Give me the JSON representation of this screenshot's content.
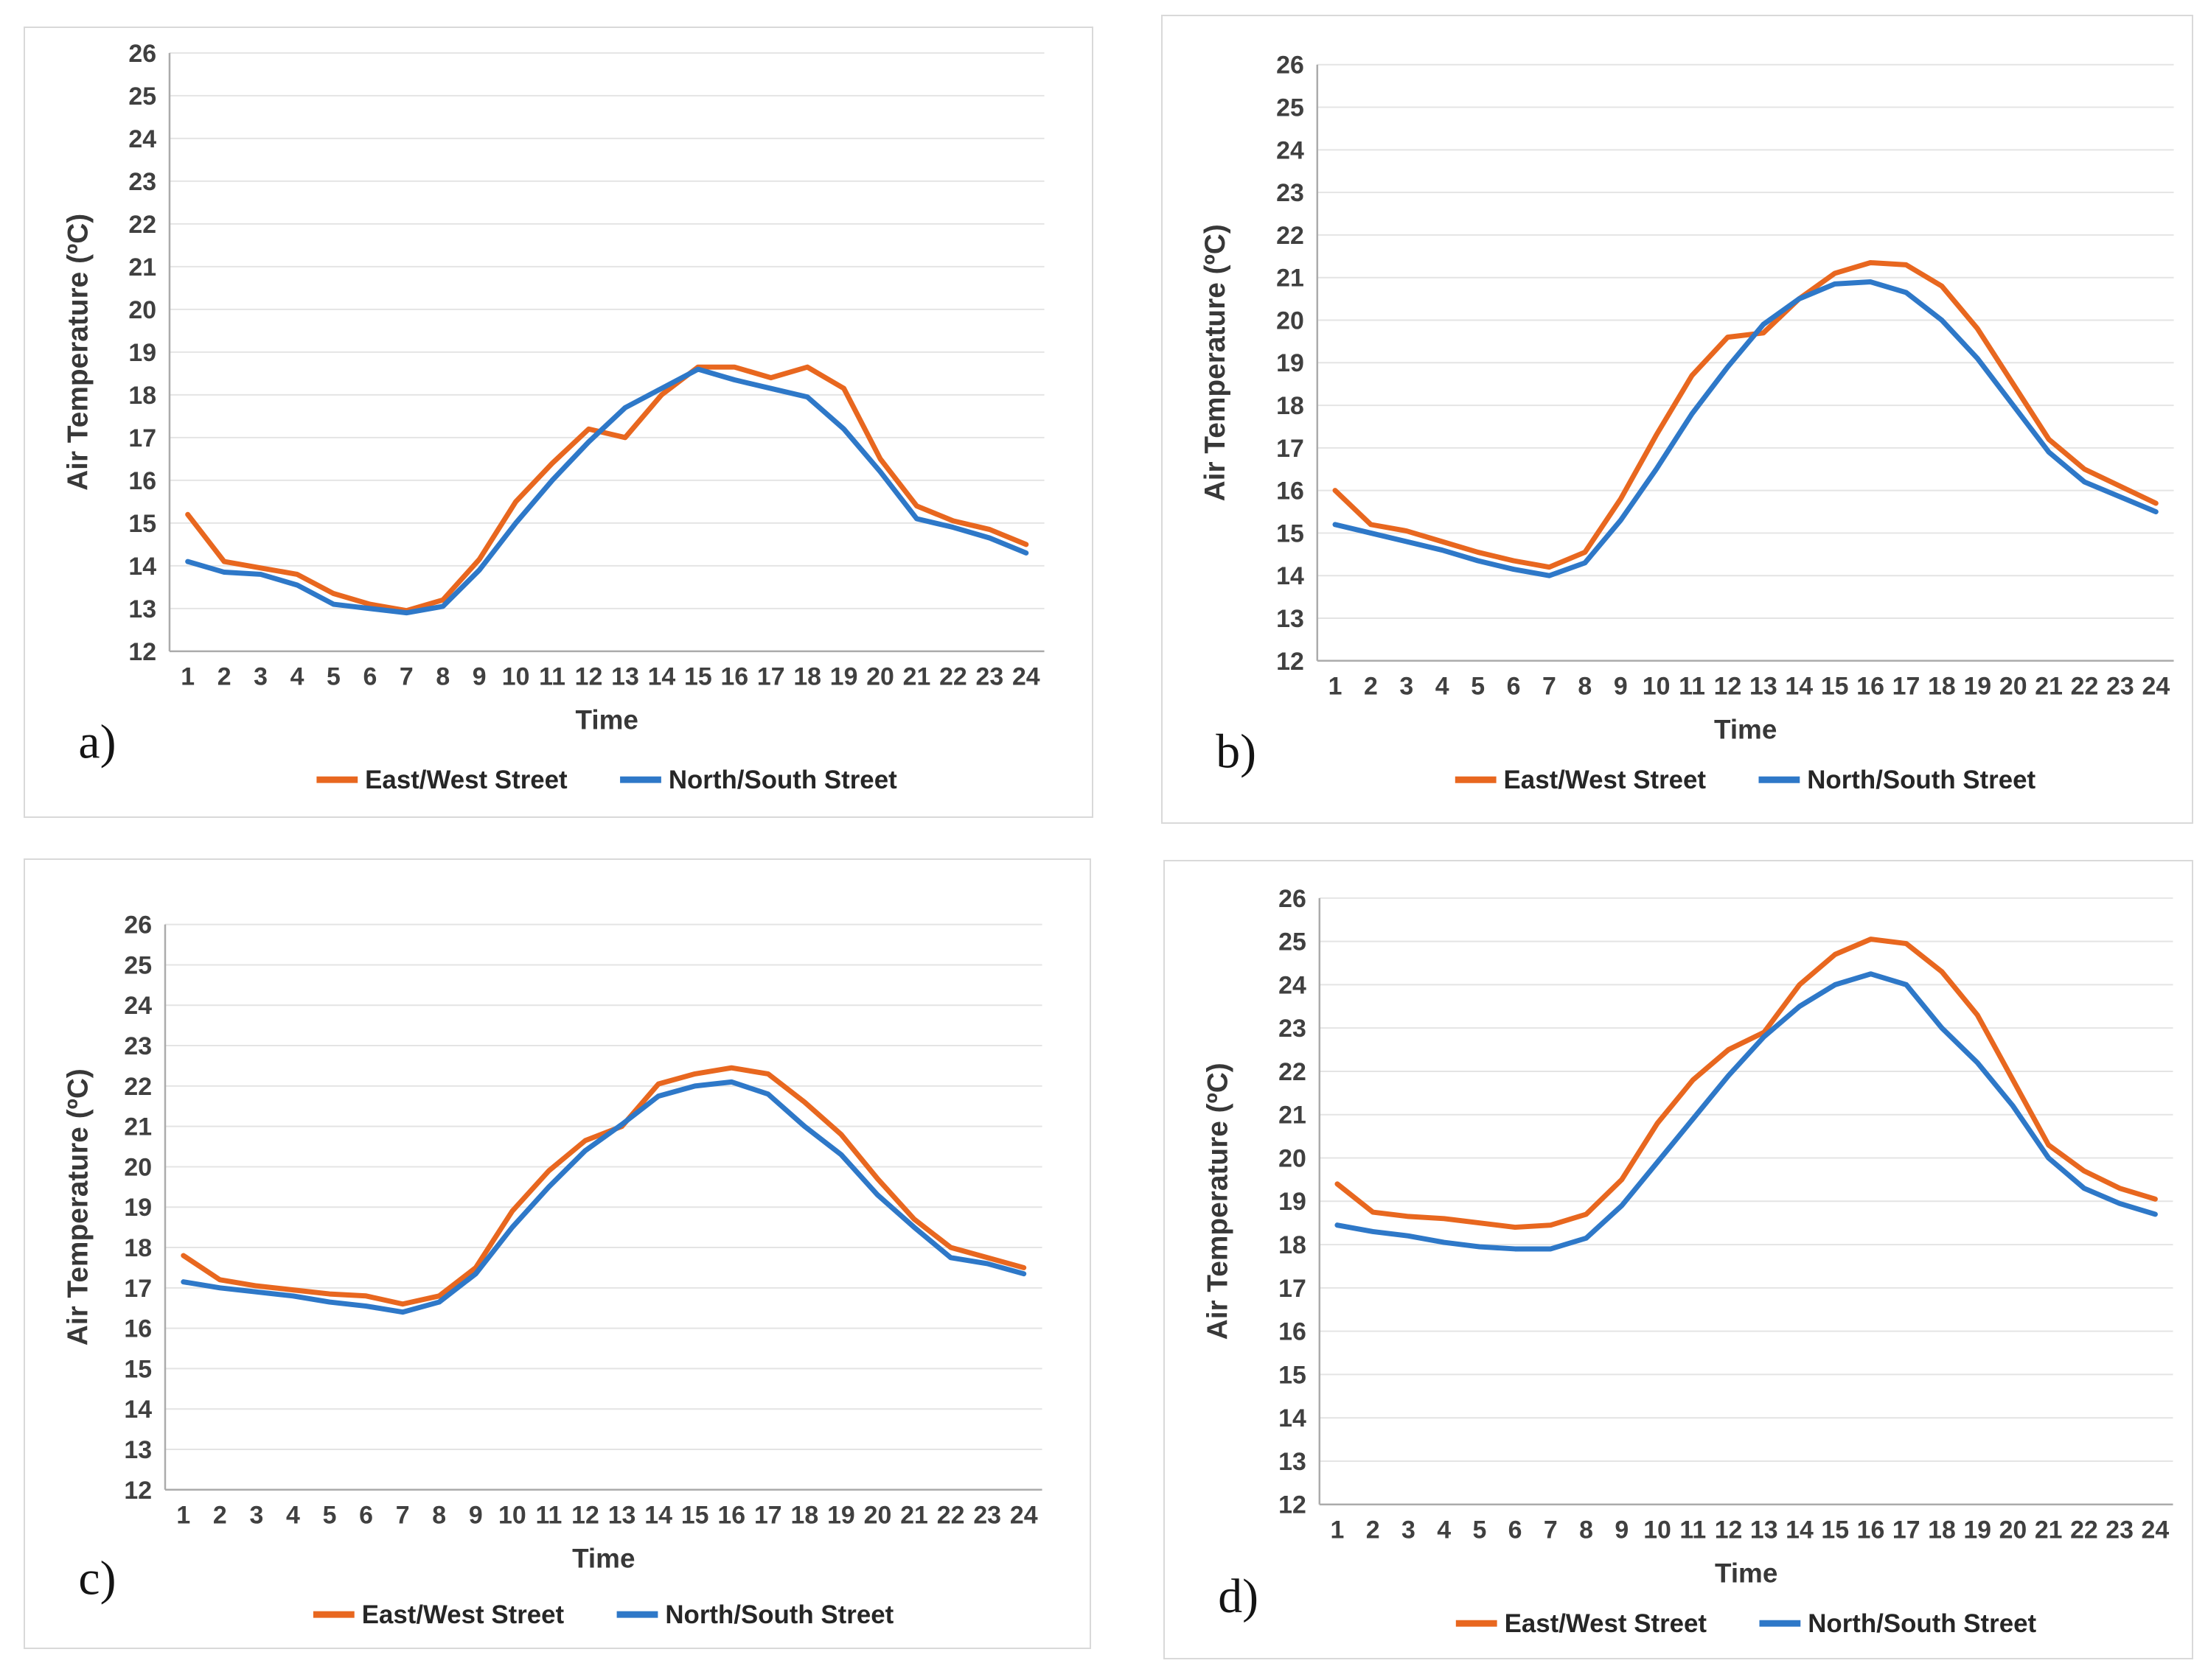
{
  "figure": {
    "description": "Four line charts comparing diurnal air temperature in East/West vs North/South streets",
    "xlabel": "Time",
    "ylabel": "Air Temperature (ºC)",
    "legend": [
      "East/West Street",
      "North/South Street"
    ]
  },
  "colors": {
    "east_west": "#e8671f",
    "north_south": "#2e78c8",
    "gridline": "#e4e4e4",
    "axis": "#ababab",
    "tick_text": "#404040",
    "panel_border": "#d9d9d9"
  },
  "chart_data": [
    {
      "type": "line",
      "panel_label": "a)",
      "xlabel": "Time",
      "ylabel": "Air Temperature (ºC)",
      "ylim": [
        12,
        26
      ],
      "ytick_step": 1,
      "grid": "horizontal",
      "legend_position": "bottom",
      "categories": [
        1,
        2,
        3,
        4,
        5,
        6,
        7,
        8,
        9,
        10,
        11,
        12,
        13,
        14,
        15,
        16,
        17,
        18,
        19,
        20,
        21,
        22,
        23,
        24
      ],
      "series": [
        {
          "name": "East/West Street",
          "values": [
            15.2,
            14.1,
            13.95,
            13.8,
            13.35,
            13.1,
            12.95,
            13.2,
            14.15,
            15.5,
            16.4,
            17.2,
            17.0,
            18.0,
            18.65,
            18.65,
            18.4,
            18.65,
            18.15,
            16.5,
            15.4,
            15.05,
            14.85,
            14.5
          ]
        },
        {
          "name": "North/South Street",
          "values": [
            14.1,
            13.85,
            13.8,
            13.55,
            13.1,
            13.0,
            12.9,
            13.05,
            13.9,
            15.0,
            16.0,
            16.9,
            17.7,
            18.15,
            18.6,
            18.35,
            18.15,
            17.95,
            17.2,
            16.2,
            15.1,
            14.9,
            14.65,
            14.3
          ]
        }
      ]
    },
    {
      "type": "line",
      "panel_label": "b)",
      "xlabel": "Time",
      "ylabel": "Air Temperature (ºC)",
      "ylim": [
        12,
        26
      ],
      "ytick_step": 1,
      "grid": "horizontal",
      "legend_position": "bottom",
      "categories": [
        1,
        2,
        3,
        4,
        5,
        6,
        7,
        8,
        9,
        10,
        11,
        12,
        13,
        14,
        15,
        16,
        17,
        18,
        19,
        20,
        21,
        22,
        23,
        24
      ],
      "series": [
        {
          "name": "East/West Street",
          "values": [
            16.0,
            15.2,
            15.05,
            14.8,
            14.55,
            14.35,
            14.2,
            14.55,
            15.8,
            17.3,
            18.7,
            19.6,
            19.7,
            20.5,
            21.1,
            21.35,
            21.3,
            20.8,
            19.8,
            18.5,
            17.2,
            16.5,
            16.1,
            15.7
          ]
        },
        {
          "name": "North/South Street",
          "values": [
            15.2,
            15.0,
            14.8,
            14.6,
            14.35,
            14.15,
            14.0,
            14.3,
            15.3,
            16.5,
            17.8,
            18.9,
            19.9,
            20.5,
            20.85,
            20.9,
            20.65,
            20.0,
            19.1,
            18.0,
            16.9,
            16.2,
            15.85,
            15.5
          ]
        }
      ]
    },
    {
      "type": "line",
      "panel_label": "c)",
      "xlabel": "Time",
      "ylabel": "Air Temperature (ºC)",
      "ylim": [
        12,
        26
      ],
      "ytick_step": 1,
      "grid": "horizontal",
      "legend_position": "bottom",
      "categories": [
        1,
        2,
        3,
        4,
        5,
        6,
        7,
        8,
        9,
        10,
        11,
        12,
        13,
        14,
        15,
        16,
        17,
        18,
        19,
        20,
        21,
        22,
        23,
        24
      ],
      "series": [
        {
          "name": "East/West Street",
          "values": [
            17.8,
            17.2,
            17.05,
            16.95,
            16.85,
            16.8,
            16.6,
            16.8,
            17.5,
            18.9,
            19.9,
            20.65,
            21.0,
            22.05,
            22.3,
            22.45,
            22.3,
            21.6,
            20.8,
            19.7,
            18.7,
            18.0,
            17.75,
            17.5
          ]
        },
        {
          "name": "North/South Street",
          "values": [
            17.15,
            17.0,
            16.9,
            16.8,
            16.65,
            16.55,
            16.4,
            16.65,
            17.35,
            18.5,
            19.5,
            20.4,
            21.05,
            21.75,
            22.0,
            22.1,
            21.8,
            21.0,
            20.3,
            19.3,
            18.5,
            17.75,
            17.6,
            17.35
          ]
        }
      ]
    },
    {
      "type": "line",
      "panel_label": "d)",
      "xlabel": "Time",
      "ylabel": "Air Temperature (ºC)",
      "ylim": [
        12,
        26
      ],
      "ytick_step": 1,
      "grid": "horizontal",
      "legend_position": "bottom",
      "categories": [
        1,
        2,
        3,
        4,
        5,
        6,
        7,
        8,
        9,
        10,
        11,
        12,
        13,
        14,
        15,
        16,
        17,
        18,
        19,
        20,
        21,
        22,
        23,
        24
      ],
      "series": [
        {
          "name": "East/West Street",
          "values": [
            19.4,
            18.75,
            18.65,
            18.6,
            18.5,
            18.4,
            18.45,
            18.7,
            19.5,
            20.8,
            21.8,
            22.5,
            22.9,
            24.0,
            24.7,
            25.05,
            24.95,
            24.3,
            23.3,
            21.8,
            20.3,
            19.7,
            19.3,
            19.05
          ]
        },
        {
          "name": "North/South Street",
          "values": [
            18.45,
            18.3,
            18.2,
            18.05,
            17.95,
            17.9,
            17.9,
            18.15,
            18.9,
            19.9,
            20.9,
            21.9,
            22.8,
            23.5,
            24.0,
            24.25,
            24.0,
            23.0,
            22.2,
            21.2,
            20.0,
            19.3,
            18.95,
            18.7
          ]
        }
      ]
    }
  ]
}
